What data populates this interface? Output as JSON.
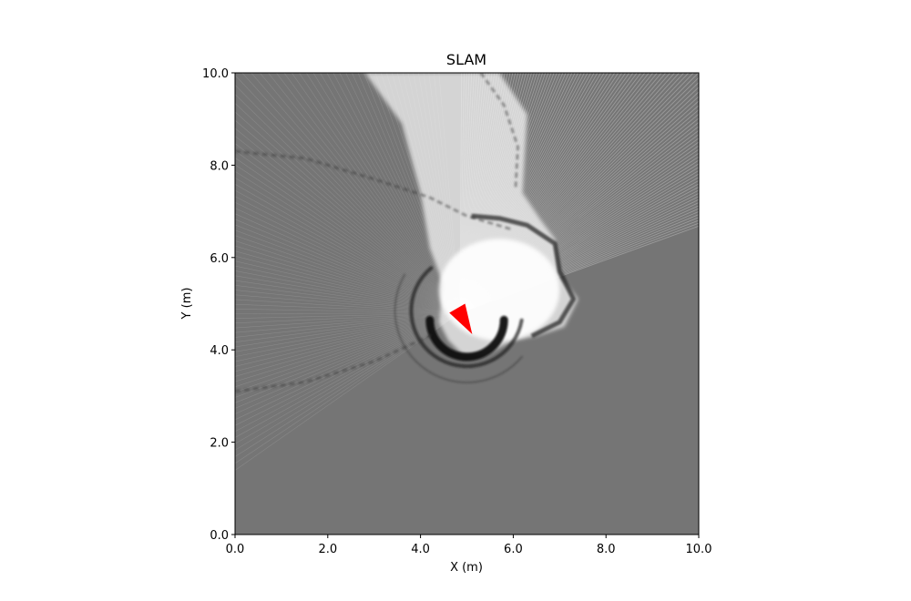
{
  "chart_data": {
    "type": "heatmap",
    "title": "SLAM",
    "xlabel": "X (m)",
    "ylabel": "Y (m)",
    "xlim": [
      0,
      10
    ],
    "ylim": [
      0,
      10
    ],
    "xticks": [
      0,
      2,
      4,
      6,
      8,
      10
    ],
    "yticks": [
      0,
      2,
      4,
      6,
      8,
      10
    ],
    "xtick_labels": [
      "0.0",
      "2.0",
      "4.0",
      "6.0",
      "8.0",
      "10.0"
    ],
    "ytick_labels": [
      "0.0",
      "2.0",
      "4.0",
      "6.0",
      "8.0",
      "10.0"
    ],
    "grid": false,
    "colormap": "grayscale occupancy grid (white = free, black = occupied, gray = unknown)",
    "unknown_color": "#757575",
    "robot": {
      "x": 4.85,
      "y": 4.8,
      "heading_deg": -60,
      "color": "#ff0000"
    },
    "scan_fans": [
      {
        "from_deg": 95,
        "to_deg": 215,
        "range_m": 5.0,
        "style": "faint rays to map edge"
      },
      {
        "from_deg": 20,
        "to_deg": 90,
        "range_m": 5.0,
        "style": "dense bright rays"
      }
    ],
    "free_region_boundary": [
      [
        4.5,
        5.4
      ],
      [
        4.2,
        6.2
      ],
      [
        4.0,
        7.4
      ],
      [
        3.6,
        8.9
      ],
      [
        2.8,
        10.0
      ],
      [
        5.7,
        10.0
      ],
      [
        6.3,
        9.1
      ],
      [
        6.2,
        7.4
      ],
      [
        6.6,
        6.8
      ],
      [
        6.9,
        6.4
      ],
      [
        7.0,
        5.6
      ],
      [
        7.4,
        5.1
      ],
      [
        7.1,
        4.5
      ],
      [
        6.5,
        4.3
      ],
      [
        6.0,
        4.2
      ],
      [
        5.4,
        3.9
      ],
      [
        4.9,
        3.9
      ],
      [
        4.6,
        4.2
      ],
      [
        4.4,
        4.6
      ]
    ],
    "occupied_arcs": [
      {
        "cx": 5.0,
        "cy": 4.65,
        "r": 0.8,
        "from_deg": 180,
        "to_deg": 360,
        "weight": "strong"
      },
      {
        "cx": 5.0,
        "cy": 4.85,
        "r": 1.2,
        "from_deg": 130,
        "to_deg": 350,
        "weight": "medium"
      },
      {
        "cx": 5.0,
        "cy": 4.85,
        "r": 1.55,
        "from_deg": 150,
        "to_deg": 320,
        "weight": "faint"
      }
    ],
    "occupied_curves": [
      {
        "points": [
          [
            0.0,
            3.1
          ],
          [
            1.5,
            3.3
          ],
          [
            3.0,
            3.75
          ],
          [
            4.3,
            4.35
          ]
        ],
        "weight": "faint"
      },
      {
        "points": [
          [
            0.0,
            8.3
          ],
          [
            1.5,
            8.15
          ],
          [
            3.0,
            7.7
          ],
          [
            4.2,
            7.3
          ],
          [
            5.0,
            6.9
          ],
          [
            6.0,
            6.6
          ]
        ],
        "weight": "faint"
      },
      {
        "points": [
          [
            5.3,
            10.0
          ],
          [
            5.8,
            9.3
          ],
          [
            6.1,
            8.4
          ],
          [
            6.05,
            7.5
          ]
        ],
        "weight": "faint"
      },
      {
        "points": [
          [
            5.1,
            6.9
          ],
          [
            5.7,
            6.85
          ],
          [
            6.3,
            6.7
          ],
          [
            6.9,
            6.3
          ],
          [
            7.0,
            5.7
          ],
          [
            7.3,
            5.1
          ],
          [
            7.0,
            4.6
          ],
          [
            6.4,
            4.3
          ]
        ],
        "weight": "medium"
      }
    ]
  }
}
